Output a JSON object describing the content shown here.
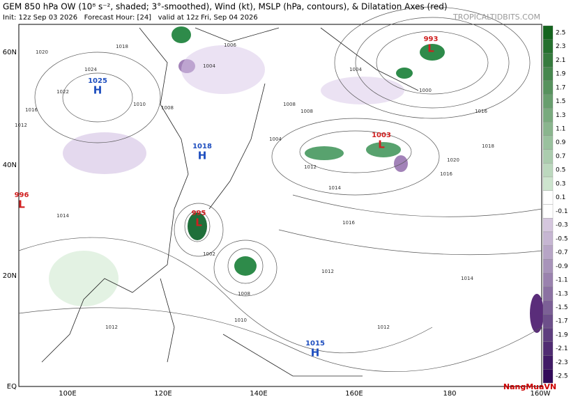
{
  "header": {
    "title": "GEM 850 hPa OW (10⁸ s⁻², shaded; 3°-smoothed), Wind (kt), MSLP (hPa, contours), & Dilatation Axes (red)",
    "subtitle": "Init: 12z Sep 03 2026   Forecast Hour: [24]   valid at 12z Fri, Sep 04 2026",
    "source": "TROPICALTIDBITS.COM"
  },
  "map": {
    "lat_labels": [
      "60N",
      "40N",
      "20N",
      "EQ"
    ],
    "lon_labels": [
      "100E",
      "120E",
      "140E",
      "160E",
      "180",
      "160W"
    ],
    "pressure_centers": [
      {
        "value": "1025",
        "kind": "H"
      },
      {
        "value": "1018",
        "kind": "H"
      },
      {
        "value": "1015",
        "kind": "H"
      },
      {
        "value": "996",
        "kind": "L"
      },
      {
        "value": "995",
        "kind": "L"
      },
      {
        "value": "1003",
        "kind": "L"
      },
      {
        "value": "993",
        "kind": "L"
      }
    ],
    "contour_labels": [
      "1018",
      "1020",
      "1024",
      "1022",
      "1016",
      "1012",
      "1010",
      "1008",
      "1004",
      "1006",
      "1002",
      "1014",
      "1012",
      "1016",
      "1008",
      "1004",
      "1000",
      "1012",
      "1016",
      "1018",
      "1020",
      "1016",
      "1014",
      "1012",
      "1010",
      "1008",
      "1004",
      "1014",
      "1012",
      "1008"
    ]
  },
  "colorbar": {
    "ticks": [
      2.5,
      2.3,
      2.1,
      1.9,
      1.7,
      1.5,
      1.3,
      1.1,
      0.9,
      0.7,
      0.5,
      0.3,
      0.1,
      -0.1,
      -0.3,
      -0.5,
      -0.7,
      -0.9,
      -1.1,
      -1.3,
      -1.5,
      -1.7,
      -1.9,
      -2.1,
      -2.3,
      -2.5
    ]
  },
  "watermark": "NangMuaVN"
}
